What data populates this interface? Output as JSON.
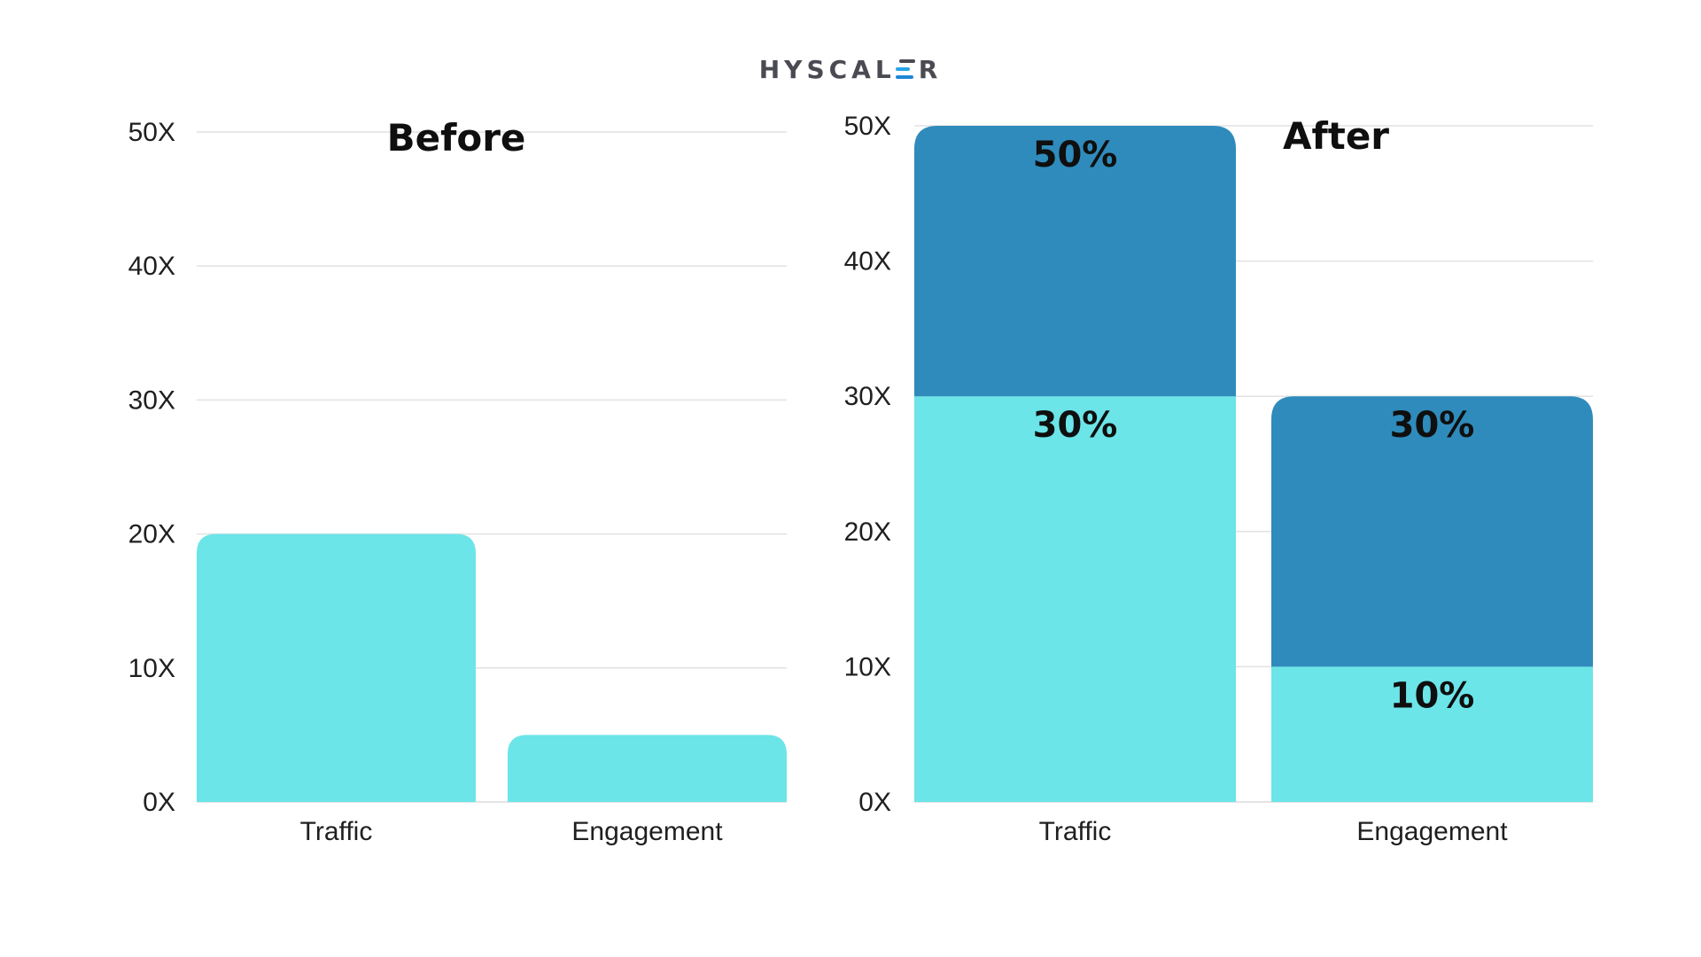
{
  "logo": {
    "text_start": "HYSCAL",
    "text_end": "R"
  },
  "colors": {
    "light": "#6be5e8",
    "dark": "#2f8bbb"
  },
  "chart_data": [
    {
      "type": "bar",
      "title": "Before",
      "categories": [
        "Traffic",
        "Engagement"
      ],
      "series": [
        {
          "values": [
            20,
            5
          ],
          "color": "#6be5e8"
        }
      ],
      "ylim": [
        0,
        50
      ],
      "yticks": [
        0,
        10,
        20,
        30,
        40,
        50
      ],
      "ytick_labels": [
        "0X",
        "10X",
        "20X",
        "30X",
        "40X",
        "50X"
      ],
      "xlabel": "",
      "ylabel": "",
      "grid": true
    },
    {
      "type": "bar",
      "stacked": true,
      "title": "After",
      "categories": [
        "Traffic",
        "Engagement"
      ],
      "series": [
        {
          "values": [
            30,
            10
          ],
          "labels": [
            "30%",
            "10%"
          ],
          "color": "#6be5e8"
        },
        {
          "values": [
            20,
            20
          ],
          "labels": [
            "50%",
            "30%"
          ],
          "color": "#2f8bbb"
        }
      ],
      "ylim": [
        0,
        50
      ],
      "yticks": [
        0,
        10,
        20,
        30,
        40,
        50
      ],
      "ytick_labels": [
        "0X",
        "10X",
        "20X",
        "30X",
        "40X",
        "50X"
      ],
      "xlabel": "",
      "ylabel": "",
      "grid": true
    }
  ]
}
